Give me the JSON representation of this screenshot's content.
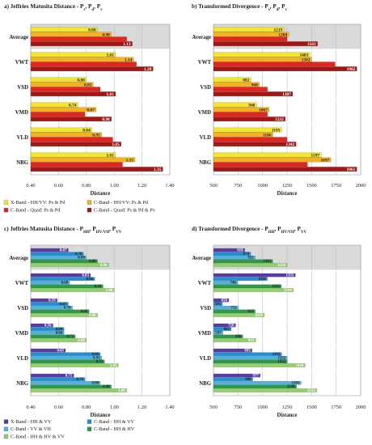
{
  "chart_data": [
    {
      "panel_label": "a)",
      "title_main": "Jeffries Matusita Distance - P",
      "title_subscripts": [
        "s",
        "d",
        "v"
      ],
      "type": "bar",
      "orientation": "horizontal",
      "categories": [
        "Average",
        "VWT",
        "VSD",
        "VMD",
        "VLD",
        "NBG"
      ],
      "xlabel": "Distance",
      "xlim": [
        0.4,
        1.4
      ],
      "xticks": [
        "0.40",
        "0.60",
        "0.80",
        "1.00",
        "1.20",
        "1.40"
      ],
      "grid": true,
      "legend_position": "bottom",
      "series": [
        {
          "name": "X-Band - HH/VV: Ps & Pd",
          "color": "#f5e62a",
          "values": [
            0.88,
            1.01,
            0.8,
            0.74,
            0.84,
            1.01
          ]
        },
        {
          "name": "C-Band - HH/VV: Ps & Pd",
          "color": "#f5b21f",
          "values": [
            0.98,
            1.14,
            0.85,
            0.87,
            0.91,
            1.15
          ]
        },
        {
          "name": "C-Band - Quad: Ps & Pd",
          "color": "#e5241d",
          "values": [
            1.09,
            1.16,
            0.9,
            0.79,
            0.99,
            1.06
          ]
        },
        {
          "name": "C-Band - Quad: Ps & Pd & Pv",
          "color": "#a31613",
          "values": [
            1.13,
            1.28,
            1.01,
            0.98,
            1.05,
            1.35
          ]
        }
      ],
      "labels": [
        [
          "0.88",
          "1.01",
          "0.80",
          "0.74",
          "0.84",
          "1.01"
        ],
        [
          "0.98",
          "1.14",
          "0.85",
          "0.87",
          "0.91",
          "1.15"
        ],
        [
          "",
          "",
          "",
          "",
          "",
          ""
        ],
        [
          "1.13",
          "1.28",
          "1.01",
          "0.98",
          "1.05",
          "1.35"
        ]
      ]
    },
    {
      "panel_label": "b)",
      "title_main": "Transformed Divergence - P",
      "title_subscripts": [
        "s",
        "d",
        "v"
      ],
      "type": "bar",
      "orientation": "horizontal",
      "categories": [
        "Average",
        "VWT",
        "VSD",
        "VMD",
        "VLD",
        "NBG"
      ],
      "xlabel": "Distance",
      "xlim": [
        500,
        2000
      ],
      "xticks": [
        "500",
        "750",
        "1000",
        "1250",
        "1500",
        "1750",
        "2000"
      ],
      "grid": true,
      "legend_position": "bottom",
      "series": [
        {
          "name": "X-Band - HH/VV: Ps & Pd",
          "color": "#f5e62a",
          "values": [
            1219,
            1483,
            882,
            940,
            1195,
            1597
          ]
        },
        {
          "name": "C-Band - HH/VV: Ps & Pd",
          "color": "#f5b21f",
          "values": [
            1268,
            1502,
            968,
            1067,
            1106,
            1697
          ]
        },
        {
          "name": "C-Band - Quad: Ps & Pd",
          "color": "#e5241d",
          "values": [
            1250,
            1740,
            1050,
            1050,
            1250,
            1458
          ]
        },
        {
          "name": "C-Band - Quad: Ps & Pd & Pv",
          "color": "#a31613",
          "values": [
            1561,
            1962,
            1307,
            1232,
            1342,
            1961
          ]
        }
      ],
      "labels": [
        [
          "1219",
          "1483",
          "882",
          "940",
          "1195",
          "1597"
        ],
        [
          "1268",
          "1502",
          "968",
          "1067",
          "1106",
          "1697"
        ],
        [
          "",
          "",
          "",
          "",
          "",
          ""
        ],
        [
          "1561",
          "1962",
          "1307",
          "1232",
          "1342",
          "1961"
        ]
      ]
    },
    {
      "panel_label": "c)",
      "title_main": "Jeffries Matusita Distance - P",
      "title_subscripts": [
        "HH",
        "HV/VH",
        "VV"
      ],
      "type": "bar",
      "orientation": "horizontal",
      "categories": [
        "Average",
        "VWT",
        "VSD",
        "VMD",
        "VLD",
        "NBG"
      ],
      "xlabel": "Distance",
      "xlim": [
        0.4,
        1.4
      ],
      "xticks": [
        "0.40",
        "0.60",
        "0.80",
        "1.00",
        "1.20",
        "1.40"
      ],
      "grid": true,
      "legend_position": "bottom",
      "series": [
        {
          "name": "X-Band - HH & VV",
          "color": "#5b3aa6",
          "values": [
            0.67,
            0.83,
            0.59,
            0.56,
            0.65,
            0.71
          ]
        },
        {
          "name": "C-Band - HH & VV",
          "color": "#1f8fd6",
          "values": [
            0.78,
            0.86,
            0.67,
            0.64,
            0.9,
            0.79
          ]
        },
        {
          "name": "C-Band - VV & VH",
          "color": "#4fb3e0",
          "values": [
            0.8,
            0.68,
            0.7,
            0.64,
            0.91,
            0.9
          ]
        },
        {
          "name": "C-Band - HH & HV",
          "color": "#2d9a47",
          "values": [
            0.88,
            0.92,
            0.82,
            0.72,
            0.93,
            0.98
          ]
        },
        {
          "name": "C-Band - HH & HV & VV",
          "color": "#8fd26a",
          "values": [
            0.96,
            1.0,
            0.88,
            0.8,
            1.03,
            1.09
          ]
        }
      ],
      "labels": [
        [
          "0.67",
          "0.83",
          "0.59",
          "0.56",
          "0.65",
          "0.71"
        ],
        [
          "0.78",
          "0.86",
          "0.67",
          "0.64",
          "0.90",
          "0.79"
        ],
        [
          "0.80",
          "0.68",
          "0.70",
          "0.64",
          "0.91",
          "0.90"
        ],
        [
          "0.88",
          "0.92",
          "0.82",
          "0.72",
          "0.93",
          "0.98"
        ],
        [
          "0.96",
          "1.00",
          "0.88",
          "0.80",
          "1.03",
          "1.09"
        ]
      ]
    },
    {
      "panel_label": "d)",
      "title_main": "Transformed Divergence - P",
      "title_subscripts": [
        "HH",
        "HV/VH",
        "VV"
      ],
      "type": "bar",
      "orientation": "horizontal",
      "categories": [
        "Average",
        "VWT",
        "VSD",
        "VMD",
        "VLD",
        "NBG"
      ],
      "xlabel": "Distance",
      "xlim": [
        500,
        2000
      ],
      "xticks": [
        "500",
        "750",
        "1000",
        "1250",
        "1500",
        "1750",
        "2000"
      ],
      "grid": true,
      "legend_position": "bottom",
      "series": [
        {
          "name": "X-Band - HH & VV",
          "color": "#5b3aa6",
          "values": [
            818,
            1335,
            656,
            726,
            893,
            977
          ]
        },
        {
          "name": "C-Band - HH & VV",
          "color": "#1f8fd6",
          "values": [
            879,
            1050,
            591,
            681,
            1195,
            900
          ]
        },
        {
          "name": "C-Band - VV & VH",
          "color": "#4fb3e0",
          "values": [
            925,
            746,
            752,
            597,
            1252,
            1393
          ]
        },
        {
          "name": "C-Band - HH & HV",
          "color": "#2d9a47",
          "values": [
            1103,
            1192,
            925,
            800,
            1252,
            1346
          ]
        },
        {
          "name": "C-Band - HH & HV & VV",
          "color": "#8fd26a",
          "values": [
            1250,
            1314,
            1018,
            931,
            1434,
            1552
          ]
        }
      ],
      "labels": [
        [
          "818",
          "1335",
          "656",
          "726",
          "893",
          "977"
        ],
        [
          "879",
          "1050",
          "591",
          "681",
          "1195",
          "900"
        ],
        [
          "925",
          "746",
          "752",
          "597",
          "1252",
          "1393"
        ],
        [
          "1103",
          "1192",
          "925",
          "800",
          "1252",
          "1346"
        ],
        [
          "1250",
          "1314",
          "1018",
          "931",
          "1434",
          "1552"
        ]
      ]
    }
  ]
}
